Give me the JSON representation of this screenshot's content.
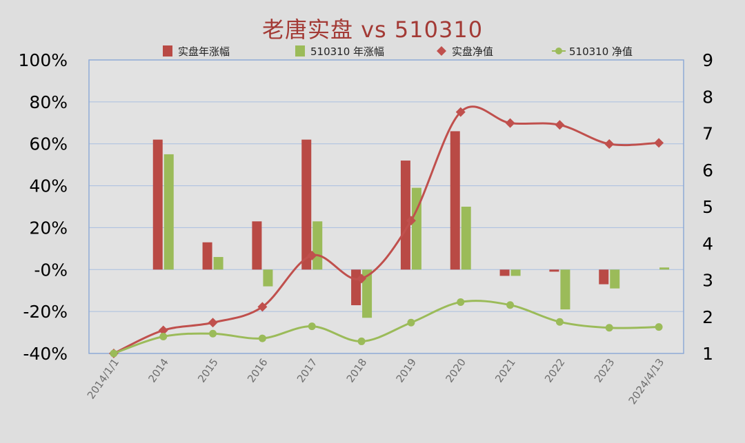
{
  "title": "老唐实盘 vs 510310",
  "colors": {
    "bar_a": "#b94a45",
    "bar_b": "#9bbb59",
    "line_a": "#c0504d",
    "line_b": "#9bbb59",
    "grid": "#a8bedf",
    "frame": "#8eaad6"
  },
  "chart_data": {
    "type": "bar+line",
    "title": "老唐实盘 vs 510310",
    "categories": [
      "2014/1/1",
      "2014",
      "2015",
      "2016",
      "2017",
      "2018",
      "2019",
      "2020",
      "2021",
      "2022",
      "2023",
      "2024/4/13"
    ],
    "y_left": {
      "range": [
        -40,
        100
      ],
      "ticks": [
        100,
        80,
        60,
        40,
        20,
        0,
        -20,
        -40
      ],
      "tick_labels": [
        "100%",
        "80%",
        "60%",
        "40%",
        "20%",
        "-0%",
        "-20%",
        "-40%"
      ]
    },
    "y_right": {
      "range": [
        1,
        9
      ],
      "ticks": [
        9,
        8,
        7,
        6,
        5,
        4,
        3,
        2,
        1
      ],
      "tick_labels": [
        "9",
        "8",
        "7",
        "6",
        "5",
        "4",
        "3",
        "2",
        "1"
      ]
    },
    "grid": true,
    "legend_position": "top",
    "series": [
      {
        "name": "实盘年涨幅",
        "kind": "bar",
        "axis": "left",
        "unit": "%",
        "values": [
          null,
          62,
          13,
          23,
          62,
          -17,
          52,
          66,
          -3,
          -1,
          -7,
          null
        ]
      },
      {
        "name": "510310 年涨幅",
        "kind": "bar",
        "axis": "left",
        "unit": "%",
        "values": [
          null,
          55,
          6,
          -8,
          23,
          -23,
          39,
          30,
          -3,
          -19,
          -9,
          1
        ]
      },
      {
        "name": "实盘净值",
        "kind": "line",
        "axis": "right",
        "marker": "diamond",
        "values": [
          1.0,
          1.63,
          1.84,
          2.27,
          3.67,
          3.04,
          4.62,
          7.58,
          7.28,
          7.23,
          6.71,
          6.74
        ]
      },
      {
        "name": "510310 净值",
        "kind": "line",
        "axis": "right",
        "marker": "circle",
        "values": [
          1.0,
          1.46,
          1.54,
          1.41,
          1.74,
          1.33,
          1.84,
          2.4,
          2.32,
          1.86,
          1.7,
          1.72
        ]
      }
    ]
  }
}
